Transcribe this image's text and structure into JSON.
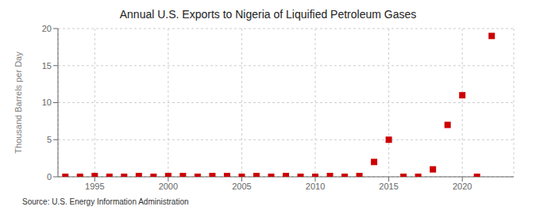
{
  "chart_data": {
    "type": "scatter",
    "title": "Annual U.S. Exports to Nigeria of Liquified Petroleum Gases",
    "ylabel": "Thousand Barrels per Day",
    "source": "Source: U.S. Energy Information Administration",
    "x": [
      1993,
      1994,
      1995,
      1996,
      1997,
      1998,
      1999,
      2000,
      2001,
      2002,
      2003,
      2004,
      2005,
      2006,
      2007,
      2008,
      2009,
      2010,
      2011,
      2012,
      2013,
      2014,
      2015,
      2016,
      2017,
      2018,
      2019,
      2020,
      2021,
      2022
    ],
    "values": [
      0.0,
      0.0,
      0.1,
      0.0,
      0.0,
      0.1,
      0.0,
      0.1,
      0.1,
      0.0,
      0.1,
      0.1,
      0.0,
      0.1,
      0.0,
      0.1,
      0.0,
      0.0,
      0.1,
      0.0,
      0.1,
      2.0,
      5.0,
      0.0,
      0.0,
      1.0,
      7.0,
      11.0,
      0.0,
      19.0
    ],
    "color": "#cc0000",
    "marker": "square",
    "xlim": [
      1992.5,
      2023.5
    ],
    "ylim": [
      0,
      20
    ],
    "xticks": [
      1995,
      2000,
      2005,
      2010,
      2015,
      2020
    ],
    "yticks": [
      0,
      5,
      10,
      15,
      20
    ],
    "grid": true
  }
}
